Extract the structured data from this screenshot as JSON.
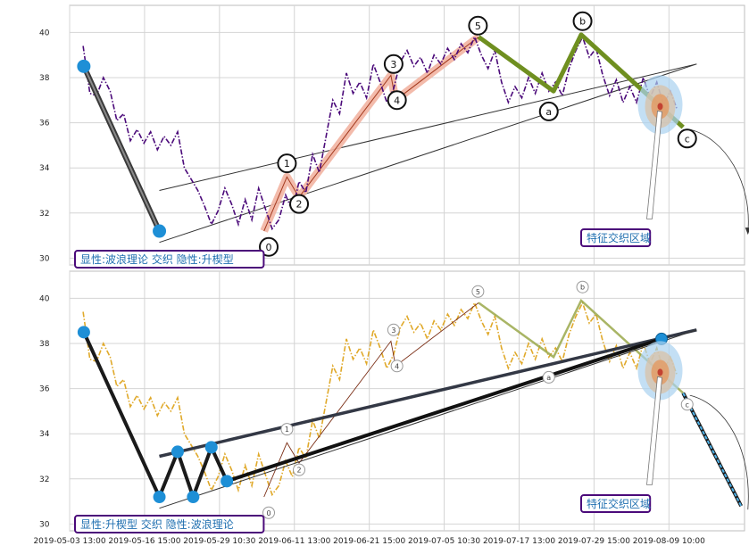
{
  "chart_data": [
    {
      "type": "line",
      "panel": "top",
      "ylim": [
        29.7,
        41.2
      ],
      "yticks": [
        30,
        32,
        34,
        36,
        38,
        40
      ],
      "price_color": "#4b0a7a",
      "caption": "显性:波浪理论 交织 隐性:升楔型",
      "zone_label": "特征交织区域",
      "wave_labels": [
        {
          "label": "0",
          "x": 29.5,
          "y": 30.5
        },
        {
          "label": "1",
          "x": 32.2,
          "y": 34.2
        },
        {
          "label": "2",
          "x": 34.0,
          "y": 32.4
        },
        {
          "label": "3",
          "x": 48.0,
          "y": 38.6
        },
        {
          "label": "4",
          "x": 48.5,
          "y": 37.0
        },
        {
          "label": "5",
          "x": 60.5,
          "y": 40.3
        },
        {
          "label": "a",
          "x": 71.0,
          "y": 36.5
        },
        {
          "label": "b",
          "x": 76.0,
          "y": 40.5
        },
        {
          "label": "c",
          "x": 91.5,
          "y": 35.3
        }
      ]
    },
    {
      "type": "line",
      "panel": "bottom",
      "ylim": [
        29.7,
        41.2
      ],
      "yticks": [
        30,
        32,
        34,
        36,
        38,
        40
      ],
      "price_color": "#e0a92a",
      "caption": "显性:升楔型 交织 隐性:波浪理论",
      "zone_label": "特征交织区域",
      "x_tick_labels": [
        "2019-05-03 13:00",
        "2019-05-16 15:00",
        "2019-05-29 10:30",
        "2019-06-11 13:00",
        "2019-06-21 15:00",
        "2019-07-05 10:30",
        "2019-07-17 13:00",
        "2019-07-29 15:00",
        "2019-08-09 10:00"
      ],
      "wave_labels": [
        {
          "label": "0",
          "x": 29.5,
          "y": 30.5
        },
        {
          "label": "1",
          "x": 32.2,
          "y": 34.2
        },
        {
          "label": "2",
          "x": 34.0,
          "y": 32.4
        },
        {
          "label": "3",
          "x": 48.0,
          "y": 38.6
        },
        {
          "label": "4",
          "x": 48.5,
          "y": 37.0
        },
        {
          "label": "5",
          "x": 60.5,
          "y": 40.3
        },
        {
          "label": "a",
          "x": 71.0,
          "y": 36.5
        },
        {
          "label": "b",
          "x": 76.0,
          "y": 40.5
        },
        {
          "label": "c",
          "x": 91.5,
          "y": 35.3
        }
      ]
    }
  ],
  "shared": {
    "x_range": [
      0,
      100
    ],
    "x_tick_positions": [
      0,
      11.1,
      22.2,
      33.3,
      44.4,
      55.5,
      66.6,
      77.7,
      88.8
    ],
    "price_path": [
      [
        2,
        39.4
      ],
      [
        3,
        37.3
      ],
      [
        4,
        37.2
      ],
      [
        5,
        38.0
      ],
      [
        6,
        37.4
      ],
      [
        7,
        36.1
      ],
      [
        8,
        36.4
      ],
      [
        9,
        35.2
      ],
      [
        10,
        35.7
      ],
      [
        11,
        35.1
      ],
      [
        12,
        35.6
      ],
      [
        13,
        34.8
      ],
      [
        14,
        35.4
      ],
      [
        15,
        35.0
      ],
      [
        16,
        35.6
      ],
      [
        17,
        34.0
      ],
      [
        18,
        33.5
      ],
      [
        19,
        33.0
      ],
      [
        20,
        32.3
      ],
      [
        21,
        31.5
      ],
      [
        22,
        32.1
      ],
      [
        23,
        33.1
      ],
      [
        24,
        32.4
      ],
      [
        25,
        31.5
      ],
      [
        26,
        32.6
      ],
      [
        27,
        31.7
      ],
      [
        28,
        33.1
      ],
      [
        29,
        32.2
      ],
      [
        30,
        31.3
      ],
      [
        31,
        31.7
      ],
      [
        32,
        32.8
      ],
      [
        33,
        32.1
      ],
      [
        34,
        33.4
      ],
      [
        35,
        32.9
      ],
      [
        36,
        34.6
      ],
      [
        37,
        33.8
      ],
      [
        38,
        35.4
      ],
      [
        39,
        37.0
      ],
      [
        40,
        36.4
      ],
      [
        41,
        38.2
      ],
      [
        42,
        37.3
      ],
      [
        43,
        37.8
      ],
      [
        44,
        37.1
      ],
      [
        45,
        38.6
      ],
      [
        46,
        37.8
      ],
      [
        47,
        36.9
      ],
      [
        48,
        37.5
      ],
      [
        49,
        38.7
      ],
      [
        50,
        39.2
      ],
      [
        51,
        38.5
      ],
      [
        52,
        38.9
      ],
      [
        53,
        38.2
      ],
      [
        54,
        39.0
      ],
      [
        55,
        38.6
      ],
      [
        56,
        39.3
      ],
      [
        57,
        38.8
      ],
      [
        58,
        39.5
      ],
      [
        59,
        39.1
      ],
      [
        60,
        39.8
      ],
      [
        61,
        39.0
      ],
      [
        62,
        38.4
      ],
      [
        63,
        39.2
      ],
      [
        64,
        37.8
      ],
      [
        65,
        36.9
      ],
      [
        66,
        37.6
      ],
      [
        67,
        37.1
      ],
      [
        68,
        38.0
      ],
      [
        69,
        37.3
      ],
      [
        70,
        38.2
      ],
      [
        71,
        37.4
      ],
      [
        72,
        37.8
      ],
      [
        73,
        37.2
      ],
      [
        74,
        38.4
      ],
      [
        75,
        39.2
      ],
      [
        76,
        39.8
      ],
      [
        77,
        38.9
      ],
      [
        78,
        39.3
      ],
      [
        79,
        38.1
      ],
      [
        80,
        37.2
      ],
      [
        81,
        37.9
      ],
      [
        82,
        36.9
      ],
      [
        83,
        37.6
      ],
      [
        84,
        36.9
      ],
      [
        85,
        38.0
      ],
      [
        86,
        37.1
      ],
      [
        87,
        37.8
      ],
      [
        88,
        36.8
      ],
      [
        89,
        37.4
      ],
      [
        90,
        36.6
      ]
    ],
    "primary_lines_top": {
      "impulse": [
        [
          28.8,
          31.2
        ],
        [
          32.2,
          33.6
        ],
        [
          34.0,
          32.7
        ],
        [
          47.6,
          38.1
        ],
        [
          48.3,
          37.0
        ],
        [
          60.6,
          39.8
        ]
      ],
      "correction": [
        [
          60.6,
          39.8
        ],
        [
          71.7,
          37.4
        ],
        [
          75.8,
          39.9
        ],
        [
          90.9,
          35.8
        ]
      ],
      "decline": [
        [
          2.1,
          38.5
        ],
        [
          13.3,
          31.2
        ]
      ]
    },
    "wedge_lines": [
      [
        [
          13.3,
          33.0
        ],
        [
          92.9,
          38.6
        ]
      ],
      [
        [
          13.3,
          30.7
        ],
        [
          92.9,
          38.6
        ]
      ]
    ],
    "wedge_points_bottom": [
      [
        2.1,
        38.5
      ],
      [
        13.3,
        31.2
      ],
      [
        16.0,
        33.2
      ],
      [
        18.3,
        31.2
      ],
      [
        21.0,
        33.4
      ],
      [
        23.3,
        31.9
      ]
    ],
    "wedge_touch": [
      87.7,
      38.2
    ],
    "projection_bottom": [
      [
        90.9,
        35.8
      ],
      [
        99.5,
        30.8
      ]
    ],
    "zone_center": [
      87.5,
      36.8
    ]
  }
}
